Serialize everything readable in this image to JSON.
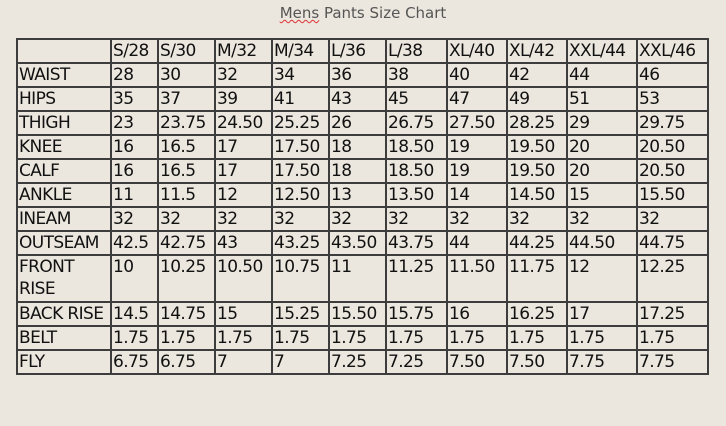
{
  "title_word1": "Mens",
  "title_rest": " Pants Size Chart",
  "headers": [
    "",
    "S/28",
    "S/30",
    "M/32",
    "M/34",
    "L/36",
    "L/38",
    "XL/40",
    "XL/42",
    "XXL/44",
    "XXL/46"
  ],
  "rows": [
    {
      "label": "WAIST",
      "values": [
        "28",
        "30",
        "32",
        "34",
        "36",
        "38",
        "40",
        "42",
        "44",
        "46"
      ]
    },
    {
      "label": "HIPS",
      "values": [
        "35",
        "37",
        "39",
        "41",
        "43",
        "45",
        "47",
        "49",
        "51",
        "53"
      ]
    },
    {
      "label": "THIGH",
      "values": [
        "23",
        "23.75",
        "24.50",
        "25.25",
        "26",
        "26.75",
        "27.50",
        "28.25",
        "29",
        "29.75"
      ]
    },
    {
      "label": "KNEE",
      "values": [
        "16",
        "16.5",
        "17",
        "17.50",
        "18",
        "18.50",
        "19",
        "19.50",
        "20",
        "20.50"
      ]
    },
    {
      "label": "CALF",
      "values": [
        "16",
        "16.5",
        "17",
        "17.50",
        "18",
        "18.50",
        "19",
        "19.50",
        "20",
        "20.50"
      ]
    },
    {
      "label": "ANKLE",
      "values": [
        "11",
        "11.5",
        "12",
        "12.50",
        "13",
        "13.50",
        "14",
        "14.50",
        "15",
        "15.50"
      ]
    },
    {
      "label": "INEAM",
      "values": [
        "32",
        "32",
        "32",
        "32",
        "32",
        "32",
        "32",
        "32",
        "32",
        "32"
      ]
    },
    {
      "label": "OUTSEAM",
      "values": [
        "42.5",
        "42.75",
        "43",
        "43.25",
        "43.50",
        "43.75",
        "44",
        "44.25",
        "44.50",
        "44.75"
      ]
    },
    {
      "label": "FRONT RISE",
      "values": [
        "10",
        "10.25",
        "10.50",
        "10.75",
        "11",
        "11.25",
        "11.50",
        "11.75",
        "12",
        "12.25"
      ]
    },
    {
      "label": "BACK RISE",
      "values": [
        "14.5",
        "14.75",
        "15",
        "15.25",
        "15.50",
        "15.75",
        "16",
        "16.25",
        "17",
        "17.25"
      ]
    },
    {
      "label": "BELT",
      "values": [
        "1.75",
        "1.75",
        "1.75",
        "1.75",
        "1.75",
        "1.75",
        "1.75",
        "1.75",
        "1.75",
        "1.75"
      ]
    },
    {
      "label": "FLY",
      "values": [
        "6.75",
        "6.75",
        "7",
        "7",
        "7.25",
        "7.25",
        "7.50",
        "7.50",
        "7.75",
        "7.75"
      ]
    }
  ]
}
